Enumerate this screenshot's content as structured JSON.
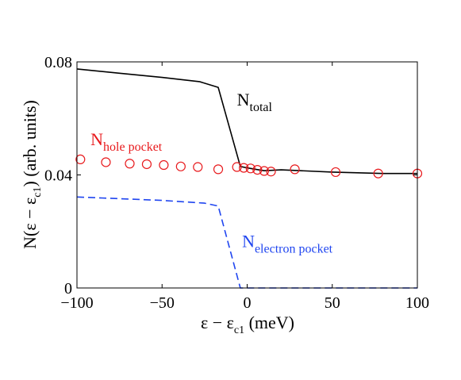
{
  "chart_data": {
    "type": "line",
    "xlabel": {
      "main": "ε − ε",
      "sub": "c1",
      "tail": " (meV)"
    },
    "ylabel": {
      "main": "N(ε − ε",
      "sub": "c1",
      "tail": ") (arb. units)"
    },
    "xlim": [
      -100,
      100
    ],
    "ylim": [
      0,
      0.08
    ],
    "xticks": [
      -100,
      -50,
      0,
      50,
      100
    ],
    "xtick_labels": [
      "−100",
      "−50",
      "0",
      "50",
      "100"
    ],
    "yticks": [
      0,
      0.04,
      0.08
    ],
    "ytick_labels": [
      "0",
      "0.04",
      "0.08"
    ],
    "grid": false,
    "legend": "none",
    "series": [
      {
        "key": "total",
        "style": "solid",
        "color": "#000000",
        "x": [
          -100,
          -75,
          -50,
          -28,
          -17,
          -4,
          0,
          5,
          10,
          20,
          50,
          80,
          100
        ],
        "y": [
          0.0775,
          0.076,
          0.0745,
          0.073,
          0.071,
          0.043,
          0.0425,
          0.042,
          0.0415,
          0.0418,
          0.041,
          0.0405,
          0.0405
        ]
      },
      {
        "key": "hole",
        "style": "circles",
        "color": "#e8191c",
        "x": [
          -98,
          -83,
          -69,
          -59,
          -49,
          -39,
          -29,
          -17,
          -6,
          -2,
          2,
          6,
          10,
          14,
          28,
          52,
          77,
          100
        ],
        "y": [
          0.0455,
          0.0445,
          0.044,
          0.0438,
          0.0435,
          0.043,
          0.0428,
          0.042,
          0.0428,
          0.0425,
          0.0423,
          0.0418,
          0.0414,
          0.0412,
          0.042,
          0.041,
          0.0405,
          0.0405
        ]
      },
      {
        "key": "electron",
        "style": "dashed",
        "color": "#1f45f0",
        "x": [
          -100,
          -50,
          -25,
          -17,
          -4,
          0,
          100
        ],
        "y": [
          0.0322,
          0.031,
          0.03,
          0.029,
          0.0,
          0.0,
          0.0
        ]
      }
    ],
    "annotations": [
      {
        "key": "total",
        "main": "N",
        "sub": "total",
        "color": "#000000",
        "x": -6,
        "y": 0.0645
      },
      {
        "key": "hole",
        "main": "N",
        "sub": "hole pocket",
        "color": "#e8191c",
        "x": -92,
        "y": 0.0505
      },
      {
        "key": "electron",
        "main": "N",
        "sub": "electron pocket",
        "color": "#1f45f0",
        "x": -3,
        "y": 0.0145
      }
    ]
  }
}
